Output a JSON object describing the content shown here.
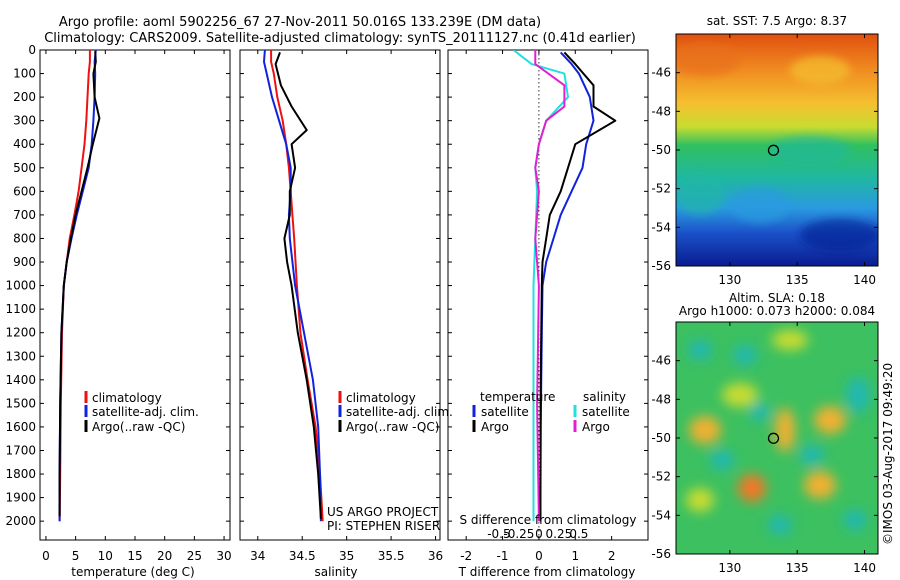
{
  "header": {
    "line1": "Argo profile: aoml 5902256_67 27-Nov-2011 50.016S 133.239E (DM data)",
    "line2": "Climatology: CARS2009. Satellite-adjusted climatology: synTS_20111127.nc (0.41d earlier)"
  },
  "credits": {
    "project": "US ARGO PROJECT",
    "pi": "PI: STEPHEN RISER",
    "imos": "©IMOS 03-Aug-2017 09:49:20"
  },
  "colors": {
    "climatology": "#ee1111",
    "satellite": "#1122dd",
    "argo": "#000000",
    "sat_salinity": "#22e0e0",
    "argo_salinity": "#e020d0"
  },
  "chart_data": [
    {
      "id": "temperature",
      "type": "line",
      "xlabel": "temperature (deg C)",
      "ylabel": "",
      "xlim": [
        -1,
        31
      ],
      "ylim": [
        2080,
        0
      ],
      "xticks": [
        0,
        5,
        10,
        15,
        20,
        25,
        30
      ],
      "xtick_labels": [
        "0",
        "5",
        "10",
        "15",
        "20",
        "25",
        "30"
      ],
      "yticks": [
        0,
        100,
        200,
        300,
        400,
        500,
        600,
        700,
        800,
        900,
        1000,
        1100,
        1200,
        1300,
        1400,
        1500,
        1600,
        1700,
        1800,
        1900,
        2000
      ],
      "ytick_labels": [
        "0",
        "100",
        "200",
        "300",
        "400",
        "500",
        "600",
        "700",
        "800",
        "900",
        "1000",
        "1100",
        "1200",
        "1300",
        "1400",
        "1500",
        "1600",
        "1700",
        "1800",
        "1900",
        "2000"
      ],
      "legend": [
        "climatology",
        "satellite-adj. clim.",
        "Argo(..raw -QC)"
      ],
      "series": [
        {
          "name": "climatology",
          "color": "#ee1111",
          "x": [
            7.4,
            7.4,
            7.2,
            7.0,
            6.8,
            6.5,
            6.0,
            5.5,
            4.8,
            4.0,
            3.5,
            3.0,
            2.7,
            2.5,
            2.4,
            2.3
          ],
          "y": [
            0,
            50,
            100,
            200,
            300,
            400,
            500,
            600,
            700,
            800,
            900,
            1000,
            1200,
            1500,
            1800,
            2000
          ]
        },
        {
          "name": "satellite-adj. clim.",
          "color": "#1122dd",
          "x": [
            8.4,
            8.2,
            8.3,
            8.2,
            8.0,
            7.7,
            7.2,
            6.2,
            5.2,
            4.3,
            3.5,
            3.0,
            2.6,
            2.4,
            2.3,
            2.3
          ],
          "y": [
            0,
            50,
            100,
            200,
            300,
            400,
            500,
            600,
            700,
            800,
            900,
            1000,
            1200,
            1500,
            1800,
            2000
          ]
        },
        {
          "name": "Argo(..raw -QC)",
          "color": "#000000",
          "x": [
            8.3,
            8.4,
            8.0,
            8.2,
            9.0,
            7.9,
            7.0,
            6.0,
            5.0,
            4.2,
            3.5,
            3.0,
            2.6,
            2.4,
            2.3,
            2.3
          ],
          "y": [
            5,
            50,
            100,
            200,
            290,
            400,
            500,
            600,
            700,
            800,
            900,
            1000,
            1200,
            1500,
            1800,
            1980
          ]
        }
      ]
    },
    {
      "id": "salinity",
      "type": "line",
      "xlabel": "salinity",
      "ylabel": "",
      "xlim": [
        33.8,
        36.05
      ],
      "ylim": [
        2080,
        0
      ],
      "xticks": [
        34,
        34.5,
        35,
        35.5,
        36
      ],
      "xtick_labels": [
        "34",
        "34.5",
        "35",
        "35.5",
        "36"
      ],
      "legend": [
        "climatology",
        "satellite-adj. clim.",
        "Argo(..raw -QC)"
      ],
      "series": [
        {
          "name": "climatology",
          "color": "#ee1111",
          "x": [
            34.15,
            34.15,
            34.18,
            34.22,
            34.28,
            34.32,
            34.35,
            34.37,
            34.39,
            34.41,
            34.44,
            34.48,
            34.56,
            34.65,
            34.7,
            34.73
          ],
          "y": [
            0,
            50,
            100,
            200,
            300,
            400,
            500,
            600,
            700,
            800,
            1000,
            1200,
            1400,
            1600,
            1800,
            2000
          ]
        },
        {
          "name": "satellite-adj. clim.",
          "color": "#1122dd",
          "x": [
            34.08,
            34.07,
            34.1,
            34.16,
            34.24,
            34.32,
            34.37,
            34.37,
            34.35,
            34.36,
            34.42,
            34.52,
            34.62,
            34.68,
            34.7,
            34.71
          ],
          "y": [
            0,
            50,
            100,
            200,
            300,
            400,
            500,
            600,
            700,
            800,
            1000,
            1200,
            1400,
            1600,
            1800,
            2000
          ]
        },
        {
          "name": "Argo(..raw -QC)",
          "color": "#000000",
          "x": [
            34.25,
            34.2,
            34.26,
            34.38,
            34.55,
            34.38,
            34.42,
            34.36,
            34.36,
            34.3,
            34.33,
            34.38,
            34.45,
            34.55,
            34.63,
            34.68,
            34.71
          ],
          "y": [
            10,
            60,
            150,
            240,
            340,
            400,
            500,
            600,
            700,
            800,
            900,
            1000,
            1200,
            1400,
            1600,
            1800,
            1990
          ]
        }
      ]
    },
    {
      "id": "differences",
      "type": "line",
      "xlabel": "T difference from climatology",
      "top_label": "S difference from climatology",
      "xlim": [
        -2.5,
        3.0
      ],
      "ylim": [
        2080,
        0
      ],
      "xticks": [
        -2,
        -1,
        0,
        1,
        2
      ],
      "xtick_labels": [
        "-2",
        "-1",
        "0",
        "1",
        "2"
      ],
      "s_ticks": [
        -0.5,
        -0.25,
        0,
        0.25,
        0.5
      ],
      "s_tick_labels": [
        "-0.5",
        "-0.25",
        "0",
        "0.25",
        "0.5"
      ],
      "legend_headers": [
        "temperature",
        "salinity"
      ],
      "legend": [
        "satellite",
        "Argo",
        "satellite",
        "Argo"
      ],
      "series": [
        {
          "name": "satellite",
          "color": "#1122dd",
          "x": [
            0.6,
            0.9,
            1.1,
            1.4,
            1.5,
            1.3,
            1.2,
            0.9,
            0.6,
            0.4,
            0.2,
            0.1,
            0.08,
            0.05,
            0.04
          ],
          "y": [
            10,
            60,
            100,
            200,
            300,
            400,
            500,
            600,
            700,
            800,
            900,
            1000,
            1200,
            1600,
            2000
          ]
        },
        {
          "name": "Argo",
          "color": "#000000",
          "x": [
            0.7,
            1.0,
            1.5,
            1.5,
            2.1,
            1.0,
            0.8,
            0.6,
            0.3,
            0.2,
            0.1,
            0.08,
            0.05,
            0.04
          ],
          "y": [
            10,
            60,
            150,
            240,
            300,
            400,
            500,
            600,
            700,
            800,
            900,
            1000,
            1400,
            2000
          ]
        },
        {
          "name": "satellite",
          "color": "#22e0e0",
          "x": [
            -0.7,
            -0.2,
            0.7,
            0.8,
            0.2,
            0.0,
            -0.1,
            -0.05,
            -0.1,
            -0.15,
            -0.15,
            -0.15
          ],
          "y": [
            0,
            60,
            100,
            200,
            300,
            400,
            500,
            600,
            800,
            1000,
            1500,
            2000
          ]
        },
        {
          "name": "Argo",
          "color": "#e020d0",
          "x": [
            -0.1,
            -0.1,
            0.7,
            0.7,
            0.2,
            0.0,
            -0.1,
            0.0,
            -0.1,
            0.0,
            -0.05,
            0.0
          ],
          "y": [
            0,
            60,
            150,
            240,
            300,
            400,
            500,
            600,
            800,
            1000,
            1500,
            2000
          ]
        }
      ]
    },
    {
      "id": "sst-map",
      "type": "heatmap",
      "title": "sat. SST: 7.5 Argo: 8.37",
      "xlim": [
        126,
        141
      ],
      "ylim": [
        -56,
        -44
      ],
      "xticks": [
        130,
        135,
        140
      ],
      "xtick_labels": [
        "130",
        "135",
        "140"
      ],
      "yticks": [
        -46,
        -48,
        -50,
        -52,
        -54,
        -56
      ],
      "ytick_labels": [
        "-46",
        "-48",
        "-50",
        "-52",
        "-54",
        "-56"
      ],
      "argo_position": [
        133.239,
        -50.016
      ]
    },
    {
      "id": "sla-map",
      "type": "heatmap",
      "title_line1": "Altim. SLA: 0.18",
      "title_line2": "Argo h1000: 0.073 h2000: 0.084",
      "xlim": [
        126,
        141
      ],
      "ylim": [
        -56,
        -44
      ],
      "xticks": [
        130,
        135,
        140
      ],
      "xtick_labels": [
        "130",
        "135",
        "140"
      ],
      "yticks": [
        -46,
        -48,
        -50,
        -52,
        -54,
        -56
      ],
      "ytick_labels": [
        "-46",
        "-48",
        "-50",
        "-52",
        "-54",
        "-56"
      ],
      "argo_position": [
        133.239,
        -50.016
      ]
    }
  ]
}
